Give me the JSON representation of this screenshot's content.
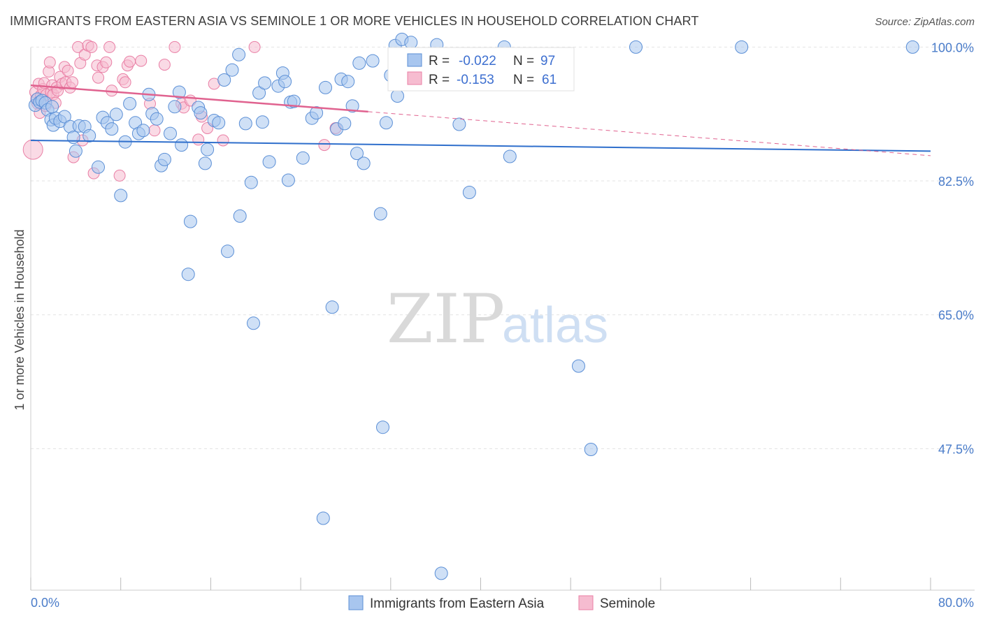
{
  "header": {
    "title": "IMMIGRANTS FROM EASTERN ASIA VS SEMINOLE 1 OR MORE VEHICLES IN HOUSEHOLD CORRELATION CHART",
    "source": "Source: ZipAtlas.com"
  },
  "watermark": {
    "zip": "ZIP",
    "atlas": "atlas"
  },
  "legend_top": {
    "r_label": "R =",
    "n_label": "N =",
    "rows": [
      {
        "r": "-0.022",
        "n": "97"
      },
      {
        "r": "-0.153",
        "n": "61"
      }
    ]
  },
  "colors": {
    "blue_fill": "#a8c6ef",
    "blue_stroke": "#5b8fd6",
    "blue_line": "#2f6fcc",
    "pink_fill": "#f6bcd0",
    "pink_stroke": "#e97fa5",
    "pink_line": "#e0628f",
    "grid": "#e3e3e3",
    "tick_text": "#4a7cc9"
  },
  "chart_data": {
    "type": "scatter",
    "title": "IMMIGRANTS FROM EASTERN ASIA VS SEMINOLE 1 OR MORE VEHICLES IN HOUSEHOLD CORRELATION CHART",
    "xlabel": "",
    "ylabel": "1 or more Vehicles in Household",
    "xlim": [
      0,
      80
    ],
    "ylim": [
      29,
      102.5
    ],
    "x_tick_labels": [
      "0.0%",
      "80.0%"
    ],
    "y_ticks": [
      100,
      82.5,
      65,
      47.5
    ],
    "y_tick_labels": [
      "100.0%",
      "82.5%",
      "65.0%",
      "47.5%"
    ],
    "grid": true,
    "series": [
      {
        "name": "Immigrants from Eastern Asia",
        "R": -0.022,
        "N": 97,
        "trend": {
          "x0": 0,
          "y0": 87.8,
          "x1": 80,
          "y1": 86.4,
          "dash_from": null
        },
        "points": [
          [
            0.4,
            92.4
          ],
          [
            0.6,
            93.2
          ],
          [
            0.8,
            92.8
          ],
          [
            1.0,
            93.0
          ],
          [
            1.3,
            92.7
          ],
          [
            1.5,
            91.8
          ],
          [
            1.8,
            90.5
          ],
          [
            2.0,
            89.8
          ],
          [
            2.2,
            90.7
          ],
          [
            1.9,
            92.2
          ],
          [
            2.6,
            90.3
          ],
          [
            3.0,
            90.9
          ],
          [
            3.5,
            89.6
          ],
          [
            3.8,
            88.2
          ],
          [
            4.0,
            86.4
          ],
          [
            4.3,
            89.7
          ],
          [
            4.8,
            89.6
          ],
          [
            5.2,
            88.4
          ],
          [
            6.0,
            84.3
          ],
          [
            6.4,
            90.8
          ],
          [
            6.8,
            90.1
          ],
          [
            7.2,
            89.3
          ],
          [
            7.6,
            91.2
          ],
          [
            8.0,
            80.6
          ],
          [
            8.4,
            87.6
          ],
          [
            8.8,
            92.6
          ],
          [
            9.3,
            90.1
          ],
          [
            9.6,
            88.7
          ],
          [
            10.0,
            89.1
          ],
          [
            10.5,
            93.8
          ],
          [
            10.8,
            91.3
          ],
          [
            11.2,
            90.6
          ],
          [
            11.6,
            84.5
          ],
          [
            11.9,
            85.3
          ],
          [
            12.4,
            88.7
          ],
          [
            12.8,
            92.2
          ],
          [
            13.2,
            94.1
          ],
          [
            13.4,
            87.2
          ],
          [
            14.0,
            70.3
          ],
          [
            14.2,
            77.2
          ],
          [
            14.9,
            92.1
          ],
          [
            15.1,
            91.4
          ],
          [
            15.5,
            84.8
          ],
          [
            15.7,
            86.6
          ],
          [
            16.3,
            90.4
          ],
          [
            16.7,
            90.1
          ],
          [
            17.2,
            95.7
          ],
          [
            17.5,
            73.3
          ],
          [
            17.9,
            97.0
          ],
          [
            18.5,
            99.0
          ],
          [
            18.6,
            77.9
          ],
          [
            19.1,
            90.0
          ],
          [
            19.6,
            82.3
          ],
          [
            19.8,
            63.9
          ],
          [
            20.3,
            94.0
          ],
          [
            20.6,
            90.2
          ],
          [
            20.8,
            95.3
          ],
          [
            21.2,
            85.0
          ],
          [
            22.0,
            94.9
          ],
          [
            22.4,
            96.6
          ],
          [
            22.6,
            95.5
          ],
          [
            22.9,
            82.6
          ],
          [
            23.1,
            92.8
          ],
          [
            23.4,
            92.9
          ],
          [
            24.2,
            85.5
          ],
          [
            25.0,
            90.7
          ],
          [
            25.4,
            91.4
          ],
          [
            26.0,
            38.4
          ],
          [
            26.2,
            94.7
          ],
          [
            26.8,
            66.0
          ],
          [
            27.2,
            89.3
          ],
          [
            27.6,
            95.8
          ],
          [
            27.9,
            90.0
          ],
          [
            28.2,
            95.5
          ],
          [
            28.6,
            92.3
          ],
          [
            29.0,
            86.1
          ],
          [
            29.2,
            97.9
          ],
          [
            29.6,
            84.8
          ],
          [
            30.4,
            98.2
          ],
          [
            31.1,
            78.2
          ],
          [
            31.3,
            50.3
          ],
          [
            31.6,
            90.1
          ],
          [
            32.0,
            96.3
          ],
          [
            32.4,
            100.2
          ],
          [
            32.6,
            93.6
          ],
          [
            33.0,
            101.0
          ],
          [
            33.8,
            100.6
          ],
          [
            36.1,
            100.3
          ],
          [
            36.5,
            31.2
          ],
          [
            38.1,
            89.9
          ],
          [
            39.0,
            81.0
          ],
          [
            42.1,
            100.0
          ],
          [
            42.6,
            85.7
          ],
          [
            48.7,
            58.3
          ],
          [
            49.8,
            47.4
          ],
          [
            53.8,
            100.0
          ],
          [
            63.2,
            100.0
          ],
          [
            78.4,
            100.0
          ]
        ]
      },
      {
        "name": "Seminole",
        "R": -0.153,
        "N": 61,
        "trend": {
          "x0": 0,
          "y0": 95.0,
          "x1": 80,
          "y1": 85.8,
          "dash_from": 30.0
        },
        "points": [
          [
            0.2,
            86.6
          ],
          [
            0.4,
            94.1
          ],
          [
            0.5,
            93.2
          ],
          [
            0.6,
            92.6
          ],
          [
            0.7,
            95.2
          ],
          [
            0.8,
            91.4
          ],
          [
            0.9,
            93.7
          ],
          [
            1.1,
            94.5
          ],
          [
            1.2,
            95.3
          ],
          [
            1.3,
            92.3
          ],
          [
            1.4,
            93.8
          ],
          [
            1.6,
            96.8
          ],
          [
            1.7,
            98.0
          ],
          [
            1.8,
            94.1
          ],
          [
            1.9,
            95.0
          ],
          [
            2.0,
            93.8
          ],
          [
            2.2,
            92.7
          ],
          [
            2.3,
            94.7
          ],
          [
            2.4,
            94.3
          ],
          [
            2.6,
            96.1
          ],
          [
            2.8,
            95.2
          ],
          [
            3.0,
            97.4
          ],
          [
            3.1,
            95.4
          ],
          [
            3.3,
            96.9
          ],
          [
            3.5,
            94.7
          ],
          [
            3.7,
            95.4
          ],
          [
            3.8,
            85.6
          ],
          [
            4.2,
            100.0
          ],
          [
            4.4,
            97.9
          ],
          [
            4.6,
            87.8
          ],
          [
            4.8,
            99.0
          ],
          [
            5.1,
            100.2
          ],
          [
            5.4,
            100.0
          ],
          [
            5.6,
            83.5
          ],
          [
            5.9,
            97.6
          ],
          [
            6.0,
            96.0
          ],
          [
            6.4,
            97.4
          ],
          [
            6.7,
            98.0
          ],
          [
            7.0,
            100.0
          ],
          [
            7.2,
            94.3
          ],
          [
            7.9,
            83.2
          ],
          [
            8.2,
            95.8
          ],
          [
            8.4,
            95.4
          ],
          [
            8.6,
            97.6
          ],
          [
            8.8,
            98.1
          ],
          [
            9.8,
            98.2
          ],
          [
            10.6,
            92.6
          ],
          [
            11.0,
            89.1
          ],
          [
            11.9,
            97.7
          ],
          [
            12.8,
            100.0
          ],
          [
            13.4,
            92.6
          ],
          [
            13.6,
            92.1
          ],
          [
            14.2,
            93.0
          ],
          [
            14.9,
            87.9
          ],
          [
            15.2,
            90.9
          ],
          [
            15.7,
            89.4
          ],
          [
            16.3,
            95.2
          ],
          [
            17.1,
            87.8
          ],
          [
            19.9,
            100.0
          ],
          [
            26.1,
            87.2
          ],
          [
            27.1,
            89.4
          ]
        ]
      }
    ]
  },
  "bottom_legend": {
    "items": [
      {
        "label": "Immigrants from Eastern Asia"
      },
      {
        "label": "Seminole"
      }
    ]
  }
}
